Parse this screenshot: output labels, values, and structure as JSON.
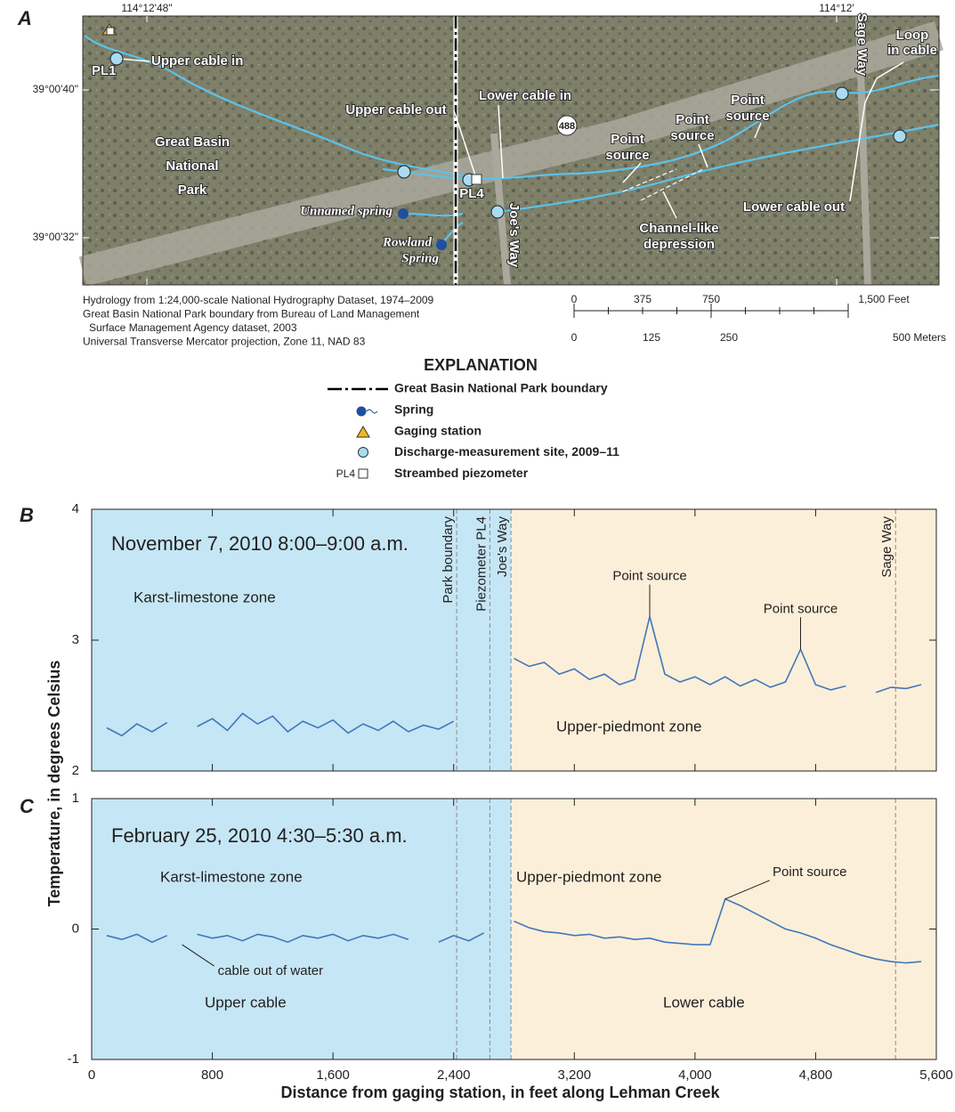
{
  "panel_letters": [
    "A",
    "B",
    "C"
  ],
  "map": {
    "coords_top": [
      "114°12'48\"",
      "114°12'"
    ],
    "coords_left": [
      "39°00'40\"",
      "39°00'32\""
    ],
    "labels": [
      [
        "Upper cable in"
      ],
      [
        "PL1"
      ],
      [
        "Great Basin",
        "National",
        "Park"
      ],
      [
        "Upper cable out"
      ],
      [
        "Lower cable in"
      ],
      [
        "488"
      ],
      [
        "PL4"
      ],
      [
        "Unnamed spring"
      ],
      [
        "Rowland",
        "Spring"
      ],
      [
        "Joe's Way"
      ],
      [
        "Point",
        "source"
      ],
      [
        "Point",
        "source"
      ],
      [
        "Point",
        "source"
      ],
      [
        "Channel-like",
        "depression"
      ],
      [
        "Lower cable out"
      ],
      [
        "Sage Way"
      ],
      [
        "Loop",
        "in cable"
      ]
    ],
    "credits": [
      "Hydrology from 1:24,000-scale National Hydrography Dataset, 1974–2009",
      "Great Basin National Park boundary from Bureau of Land Management",
      "  Surface Management Agency dataset, 2003",
      "Universal Transverse Mercator projection, Zone 11, NAD 83"
    ],
    "scale_feet": [
      "0",
      "375",
      "750",
      "1,500 Feet"
    ],
    "scale_meters": [
      "0",
      "125",
      "250",
      "500 Meters"
    ]
  },
  "explanation": {
    "title": "EXPLANATION",
    "items": [
      "Great Basin National Park boundary",
      "Spring",
      "Gaging station",
      "Discharge-measurement site, 2009–11",
      "Streambed piezometer"
    ],
    "piezometer_tag": "PL4"
  },
  "shared_axes": {
    "ylabel": "Temperature, in degrees Celsius",
    "xlabel": "Distance from gaging station, in feet along Lehman Creek"
  },
  "chart_data": [
    {
      "type": "line",
      "title": "November 7, 2010    8:00–9:00 a.m.",
      "xlim": [
        0,
        5600
      ],
      "ylim": [
        2,
        4
      ],
      "yticks": [
        2,
        3,
        4
      ],
      "xticks": [
        0,
        800,
        1600,
        2400,
        3200,
        4000,
        4800,
        5600
      ],
      "zones": [
        {
          "name": "Karst-limestone zone",
          "color": "#c5e6f5",
          "xrange": [
            0,
            2780
          ]
        },
        {
          "name": "Upper-piedmont zone",
          "color": "#fcefd9",
          "xrange": [
            2780,
            5600
          ]
        }
      ],
      "vlines": [
        {
          "label": "Park boundary",
          "x": 2420
        },
        {
          "label": "Piezometer PL4",
          "x": 2640
        },
        {
          "label": "Joe's Way",
          "x": 2780
        },
        {
          "label": "Sage Way",
          "x": 5330
        }
      ],
      "annotations": [
        {
          "text": "Point source",
          "x": 3700,
          "y": 3.18
        },
        {
          "text": "Point source",
          "x": 4700,
          "y": 2.93
        }
      ],
      "notes": [],
      "x": [
        100,
        200,
        300,
        400,
        500,
        600,
        700,
        800,
        900,
        1000,
        1100,
        1200,
        1300,
        1400,
        1500,
        1600,
        1700,
        1800,
        1900,
        2000,
        2100,
        2200,
        2300,
        2400,
        2500,
        2600,
        2700,
        2800,
        2900,
        3000,
        3100,
        3200,
        3300,
        3400,
        3500,
        3600,
        3700,
        3800,
        3900,
        4000,
        4100,
        4200,
        4300,
        4400,
        4500,
        4600,
        4700,
        4800,
        4900,
        5000,
        5100,
        5200,
        5300,
        5400,
        5500
      ],
      "series": [
        {
          "color": "#3f77bb",
          "values": [
            2.33,
            2.27,
            2.36,
            2.3,
            2.37,
            null,
            2.34,
            2.4,
            2.31,
            2.44,
            2.36,
            2.42,
            2.3,
            2.38,
            2.33,
            2.39,
            2.29,
            2.36,
            2.31,
            2.38,
            2.3,
            2.35,
            2.32,
            2.38,
            null,
            2.33,
            null,
            2.86,
            2.8,
            2.83,
            2.74,
            2.78,
            2.7,
            2.74,
            2.66,
            2.7,
            3.18,
            2.74,
            2.68,
            2.72,
            2.66,
            2.72,
            2.65,
            2.7,
            2.64,
            2.68,
            2.93,
            2.66,
            2.62,
            2.65,
            null,
            2.6,
            2.64,
            2.63,
            2.66
          ]
        }
      ]
    },
    {
      "type": "line",
      "title": "February 25, 2010    4:30–5:30 a.m.",
      "xlim": [
        0,
        5600
      ],
      "ylim": [
        -1,
        1
      ],
      "yticks": [
        -1,
        0,
        1
      ],
      "xticks": [
        0,
        800,
        {
          "value": 1600,
          "label": "1,600"
        },
        {
          "value": 2400,
          "label": "2,400"
        },
        {
          "value": 3200,
          "label": "3,200"
        },
        {
          "value": 4000,
          "label": "4,000"
        },
        {
          "value": 4800,
          "label": "4,800"
        },
        {
          "value": 5600,
          "label": "5,600"
        }
      ],
      "zones": [
        {
          "name": "Karst-limestone zone",
          "color": "#c5e6f5",
          "xrange": [
            0,
            2780
          ]
        },
        {
          "name": "Upper-piedmont zone",
          "color": "#fcefd9",
          "xrange": [
            2780,
            5600
          ]
        }
      ],
      "vlines": [
        {
          "x": 2420
        },
        {
          "x": 2640
        },
        {
          "x": 2780
        },
        {
          "x": 5330
        }
      ],
      "annotations": [
        {
          "text": "Point source",
          "x": 4200,
          "y": 0.23
        },
        {
          "text": "cable out of water",
          "x": 600,
          "y": -0.12
        }
      ],
      "notes": [
        "Upper cable",
        "Lower cable"
      ],
      "x": [
        100,
        200,
        300,
        400,
        500,
        600,
        700,
        800,
        900,
        1000,
        1100,
        1200,
        1300,
        1400,
        1500,
        1600,
        1700,
        1800,
        1900,
        2000,
        2100,
        2200,
        2300,
        2400,
        2500,
        2600,
        2700,
        2800,
        2900,
        3000,
        3100,
        3200,
        3300,
        3400,
        3500,
        3600,
        3700,
        3800,
        3900,
        4000,
        4100,
        4200,
        4300,
        4400,
        4500,
        4600,
        4700,
        4800,
        4900,
        5000,
        5100,
        5200,
        5300,
        5400,
        5500
      ],
      "series": [
        {
          "color": "#3f77bb",
          "values": [
            -0.05,
            -0.08,
            -0.04,
            -0.1,
            -0.05,
            null,
            -0.04,
            -0.07,
            -0.05,
            -0.09,
            -0.04,
            -0.06,
            -0.1,
            -0.05,
            -0.07,
            -0.04,
            -0.09,
            -0.05,
            -0.07,
            -0.04,
            -0.08,
            null,
            -0.1,
            -0.05,
            -0.09,
            -0.03,
            null,
            0.06,
            0.01,
            -0.02,
            -0.03,
            -0.05,
            -0.04,
            -0.07,
            -0.06,
            -0.08,
            -0.07,
            -0.1,
            -0.11,
            -0.12,
            -0.12,
            0.23,
            0.18,
            0.12,
            0.06,
            0.0,
            -0.03,
            -0.07,
            -0.12,
            -0.16,
            -0.2,
            -0.23,
            -0.25,
            -0.26,
            -0.25
          ]
        }
      ]
    }
  ]
}
